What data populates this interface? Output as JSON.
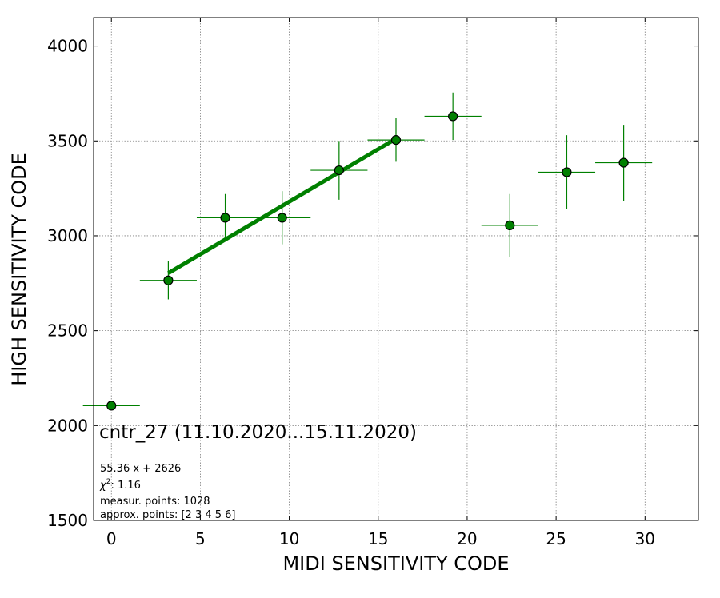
{
  "chart_data": {
    "type": "scatter",
    "xlabel": "MIDI SENSITIVITY CODE",
    "ylabel": "HIGH SENSITIVITY CODE",
    "xlim": [
      -1,
      33
    ],
    "ylim": [
      1500,
      4150
    ],
    "xticks": [
      0,
      5,
      10,
      15,
      20,
      25,
      30
    ],
    "yticks": [
      1500,
      2000,
      2500,
      3000,
      3500,
      4000
    ],
    "grid": true,
    "colors": {
      "points": "#008000",
      "errorbars": "#008000",
      "fit": "#008000",
      "grid": "#808080"
    },
    "points": [
      {
        "x": 0,
        "y": 2105,
        "xerr": 1.6,
        "yerr": 0
      },
      {
        "x": 3.2,
        "y": 2765,
        "xerr": 1.6,
        "yerr": 100
      },
      {
        "x": 6.4,
        "y": 3095,
        "xerr": 1.6,
        "yerr": 125
      },
      {
        "x": 9.6,
        "y": 3095,
        "xerr": 1.6,
        "yerr": 140
      },
      {
        "x": 12.8,
        "y": 3345,
        "xerr": 1.6,
        "yerr": 155
      },
      {
        "x": 16.0,
        "y": 3505,
        "xerr": 1.6,
        "yerr": 115
      },
      {
        "x": 19.2,
        "y": 3630,
        "xerr": 1.6,
        "yerr": 125
      },
      {
        "x": 22.4,
        "y": 3055,
        "xerr": 1.6,
        "yerr": 165
      },
      {
        "x": 25.6,
        "y": 3335,
        "xerr": 1.6,
        "yerr": 195
      },
      {
        "x": 28.8,
        "y": 3385,
        "xerr": 1.6,
        "yerr": 200
      }
    ],
    "fit": {
      "slope": 55.36,
      "intercept": 2626,
      "x_range": [
        3.2,
        16.0
      ]
    },
    "annotations": {
      "title": "cntr_27 (11.10.2020...15.11.2020)",
      "equation": "55.36 x + 2626",
      "chi2_symbol": "χ",
      "chi2_value": ": 1.16",
      "measur_points": "measur. points: 1028",
      "approx_points": "approx. points: [2 3 4 5 6]"
    }
  }
}
